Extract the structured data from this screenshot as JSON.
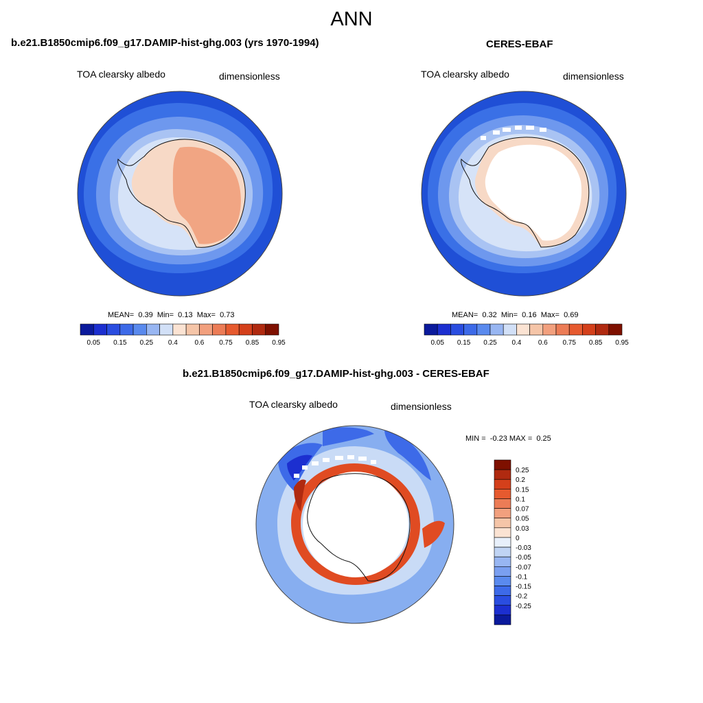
{
  "title": "ANN",
  "panels": {
    "model": {
      "title": "b.e21.B1850cmip6.f09_g17.DAMIP-hist-ghg.003 (yrs 1970-1994)",
      "variable": "TOA clearsky albedo",
      "units": "dimensionless",
      "stats": {
        "mean_label": "MEAN=",
        "mean": "0.39",
        "min_label": "Min=",
        "min": "0.13",
        "max_label": "Max=",
        "max": "0.73"
      }
    },
    "obs": {
      "title": "CERES-EBAF",
      "variable": "TOA clearsky albedo",
      "units": "dimensionless",
      "stats": {
        "mean_label": "MEAN=",
        "mean": "0.32",
        "min_label": "Min=",
        "min": "0.16",
        "max_label": "Max=",
        "max": "0.69"
      }
    },
    "diff": {
      "title": "b.e21.B1850cmip6.f09_g17.DAMIP-hist-ghg.003 - CERES-EBAF",
      "variable": "TOA clearsky albedo",
      "units": "dimensionless",
      "minmax": {
        "min_label": "MIN =",
        "min": "-0.23",
        "max_label": "MAX =",
        "max": "0.25"
      }
    }
  },
  "colorbars": {
    "abs": {
      "colors": [
        "#0b1a9c",
        "#1c2fd0",
        "#2a4de0",
        "#3d6ae8",
        "#5a8aee",
        "#98b6f2",
        "#d2e0f7",
        "#fbe3d3",
        "#f5c5a8",
        "#f2a07e",
        "#ec7c56",
        "#e65a2f",
        "#d4401b",
        "#b02a10",
        "#7e1000"
      ],
      "ticks": [
        "0.05",
        "0.15",
        "0.25",
        "0.4",
        "0.6",
        "0.75",
        "0.85",
        "0.95"
      ]
    },
    "diff": {
      "colors": [
        "#7e1000",
        "#b02a10",
        "#d4401b",
        "#e65a2f",
        "#ec7c56",
        "#f2a07e",
        "#f5c5a8",
        "#fbe3d3",
        "#e8f0fb",
        "#c0d4f4",
        "#98b6f2",
        "#7a9ff0",
        "#5a8aee",
        "#3d6ae8",
        "#2a4de0",
        "#1c2fd0",
        "#0b1a9c"
      ],
      "ticks": [
        "0.25",
        "0.2",
        "0.15",
        "0.1",
        "0.07",
        "0.05",
        "0.03",
        "0",
        "-0.03",
        "-0.05",
        "-0.07",
        "-0.1",
        "-0.15",
        "-0.2",
        "-0.25"
      ]
    }
  },
  "map_colors": {
    "ocean_far": "#1f4fd6",
    "ocean_mid": "#3a70e6",
    "ocean_near": "#6e98ee",
    "ice_edge": "#a9c3f3",
    "ice_pale": "#d6e3f8",
    "land_pale": "#f7d9c6",
    "land_mid": "#f3b596",
    "land_core": "#f1a583",
    "diff_bg": "#87aef0",
    "diff_pale": "#c9dbf6",
    "diff_blue": "#3d6ae8",
    "diff_dark": "#1c2fd0",
    "diff_red": "#e04b22",
    "diff_darkred": "#b02a10",
    "coast": "#111111"
  }
}
